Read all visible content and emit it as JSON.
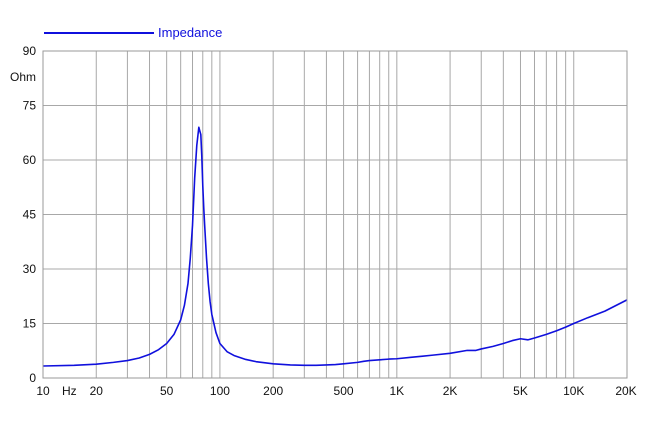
{
  "chart_data": {
    "type": "line",
    "title": "",
    "xlabel": "Hz",
    "ylabel": "Ohm",
    "x_scale": "log",
    "xlim": [
      10,
      20000
    ],
    "ylim": [
      0,
      90
    ],
    "grid": true,
    "legend_position": "top-left",
    "y_ticks": [
      {
        "value": 0,
        "label": "0"
      },
      {
        "value": 15,
        "label": "15"
      },
      {
        "value": 30,
        "label": "30"
      },
      {
        "value": 45,
        "label": "45"
      },
      {
        "value": 60,
        "label": "60"
      },
      {
        "value": 75,
        "label": "75"
      },
      {
        "value": 90,
        "label": "90"
      }
    ],
    "x_ticks": [
      {
        "value": 10,
        "label": "10"
      },
      {
        "value": 20,
        "label": "20"
      },
      {
        "value": 50,
        "label": "50"
      },
      {
        "value": 100,
        "label": "100"
      },
      {
        "value": 200,
        "label": "200"
      },
      {
        "value": 500,
        "label": "500"
      },
      {
        "value": 1000,
        "label": "1K"
      },
      {
        "value": 2000,
        "label": "2K"
      },
      {
        "value": 5000,
        "label": "5K"
      },
      {
        "value": 10000,
        "label": "10K"
      },
      {
        "value": 20000,
        "label": "20K"
      }
    ],
    "series": [
      {
        "name": "Impedance",
        "color": "#1010dd",
        "x": [
          10,
          15,
          20,
          25,
          30,
          35,
          40,
          45,
          50,
          55,
          60,
          63,
          66,
          68,
          70,
          72,
          74,
          76,
          78,
          79,
          80,
          81,
          82,
          84,
          86,
          88,
          90,
          95,
          100,
          110,
          120,
          140,
          160,
          200,
          250,
          300,
          350,
          400,
          450,
          500,
          600,
          650,
          700,
          800,
          900,
          1000,
          1200,
          1400,
          1600,
          2000,
          2500,
          2800,
          3000,
          3500,
          4000,
          4500,
          5000,
          5500,
          6000,
          7000,
          8000,
          9000,
          10000,
          12000,
          15000,
          20000
        ],
        "y": [
          3.3,
          3.5,
          3.8,
          4.3,
          4.8,
          5.5,
          6.5,
          7.8,
          9.5,
          12,
          16,
          20,
          26,
          33,
          42,
          55,
          64,
          69,
          67,
          61,
          53,
          47,
          42,
          33,
          26,
          21,
          17.5,
          12.5,
          9.5,
          7.2,
          6.2,
          5.1,
          4.5,
          3.9,
          3.6,
          3.5,
          3.5,
          3.6,
          3.7,
          3.9,
          4.3,
          4.6,
          4.8,
          5,
          5.2,
          5.3,
          5.7,
          6,
          6.3,
          6.8,
          7.6,
          7.6,
          8,
          8.7,
          9.5,
          10.3,
          10.8,
          10.5,
          11,
          12,
          13,
          14,
          15,
          16.6,
          18.4,
          21.5
        ]
      }
    ]
  }
}
